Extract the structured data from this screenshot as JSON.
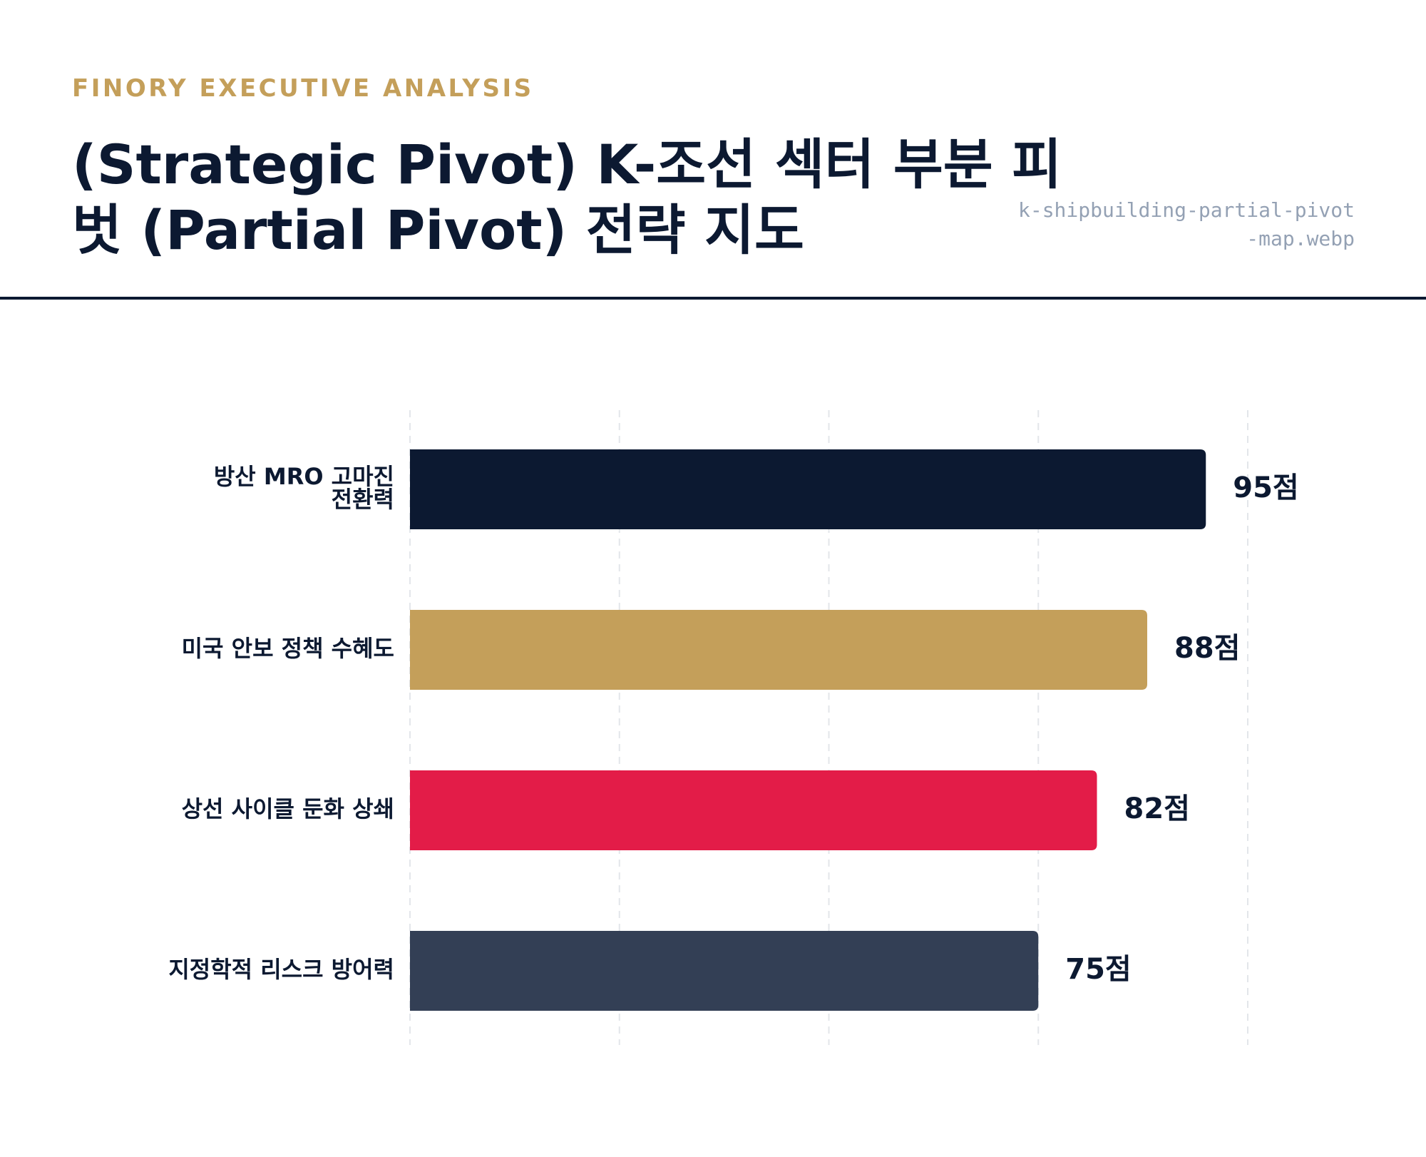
{
  "header": {
    "eyebrow": "FINORY EXECUTIVE ANALYSIS",
    "title": "(Strategic Pivot) K-조선 섹터 부분 피벗 (Partial Pivot) 전략 지도",
    "filename": "k-shipbuilding-partial-pivot-map.webp"
  },
  "chart_data": {
    "type": "bar",
    "orientation": "horizontal",
    "categories": [
      [
        "방산 MRO 고마진",
        "전환력"
      ],
      [
        "미국 안보 정책 수혜도"
      ],
      [
        "상선 사이클 둔화 상쇄"
      ],
      [
        "지정학적 리스크 방어력"
      ]
    ],
    "values": [
      95,
      88,
      82,
      75
    ],
    "value_labels": [
      "95점",
      "88점",
      "82점",
      "75점"
    ],
    "colors": [
      "#0c1931",
      "#c49f5a",
      "#e31c48",
      "#333f55"
    ],
    "xlim": [
      0,
      100
    ],
    "gridlines": [
      0,
      25,
      50,
      75,
      100
    ],
    "grid": true,
    "legend": false
  }
}
